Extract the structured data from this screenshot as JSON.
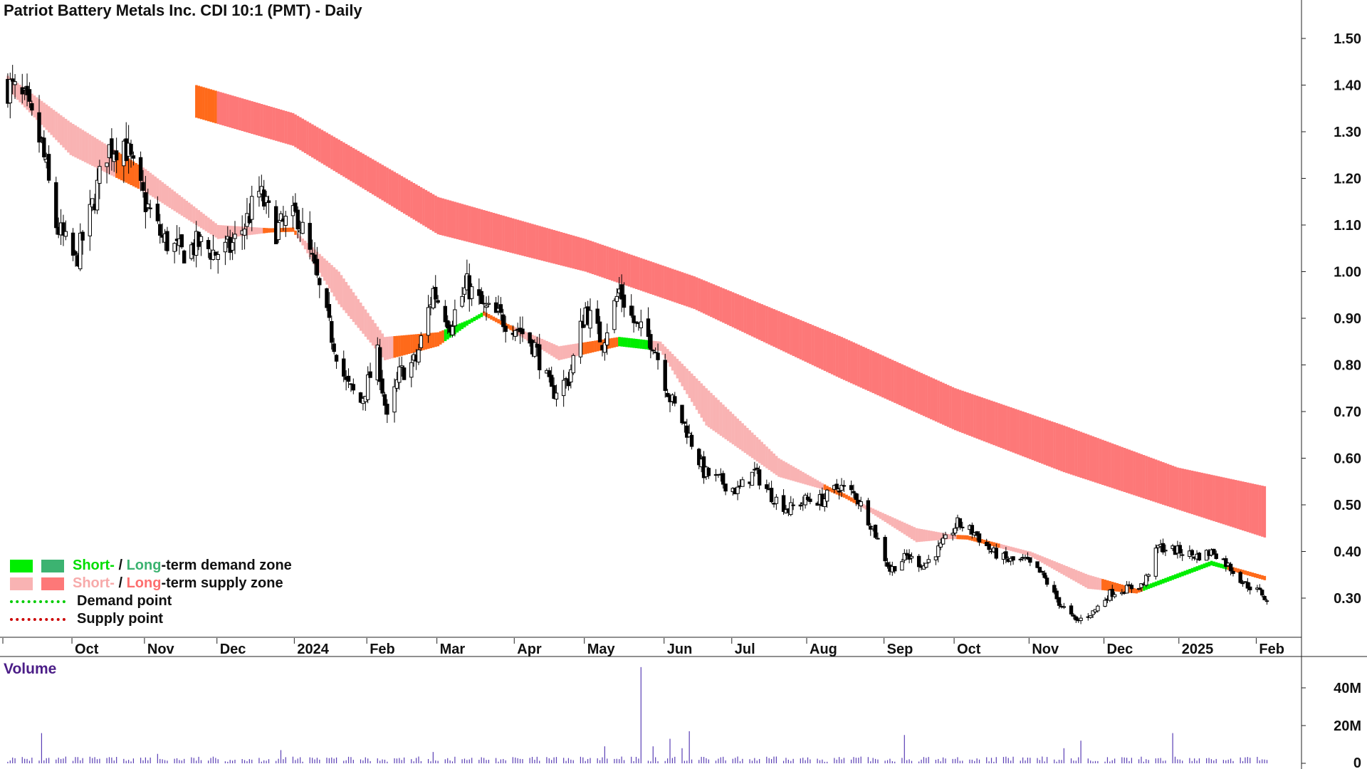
{
  "title": "Patriot Battery Metals Inc. CDI 10:1 (PMT) - Daily",
  "colors": {
    "candle": "#000000",
    "short_demand": "#00ee00",
    "long_demand": "#3cb371",
    "short_supply": "#f9b3b3",
    "long_supply": "#fd7878",
    "transition": "#ff6a1a",
    "demand_point": "#00cc00",
    "supply_point": "#cc0000",
    "volume": "#5a3fb5"
  },
  "legend": {
    "row1": {
      "short": "Short-",
      "slash": " / ",
      "long": "Long",
      "rest": "-term demand zone"
    },
    "row2": {
      "short": "Short-",
      "slash": " / ",
      "long": "Long",
      "rest": "-term supply zone"
    },
    "row3": "Demand point",
    "row4": "Supply point"
  },
  "chart_data": [
    {
      "type": "candlestick",
      "title": "Patriot Battery Metals Inc. CDI 10:1 (PMT) - Daily",
      "y_axis_position": "right",
      "ylim": [
        0.22,
        1.52
      ],
      "y_ticks": [
        "1.50",
        "1.40",
        "1.30",
        "1.20",
        "1.10",
        "1.00",
        "0.90",
        "0.80",
        "0.70",
        "0.60",
        "0.50",
        "0.40",
        "0.30"
      ],
      "x_ticks": [
        "Oct",
        "Nov",
        "Dec",
        "2024",
        "Feb",
        "Mar",
        "Apr",
        "May",
        "Jun",
        "Jul",
        "Aug",
        "Sep",
        "Oct",
        "Nov",
        "Dec",
        "2025",
        "Feb"
      ],
      "x_range": [
        "2023-09-04",
        "2025-02-07"
      ],
      "price_path": [
        [
          "2023-09-05",
          1.4
        ],
        [
          "2023-09-12",
          1.36
        ],
        [
          "2023-09-19",
          1.27
        ],
        [
          "2023-09-25",
          1.1
        ],
        [
          "2023-10-03",
          1.02
        ],
        [
          "2023-10-09",
          1.12
        ],
        [
          "2023-10-16",
          1.26
        ],
        [
          "2023-10-23",
          1.28
        ],
        [
          "2023-10-30",
          1.17
        ],
        [
          "2023-11-08",
          1.07
        ],
        [
          "2023-11-16",
          1.04
        ],
        [
          "2023-11-23",
          1.06
        ],
        [
          "2023-11-30",
          1.04
        ],
        [
          "2023-12-06",
          1.05
        ],
        [
          "2023-12-12",
          1.1
        ],
        [
          "2023-12-18",
          1.17
        ],
        [
          "2023-12-25",
          1.09
        ],
        [
          "2024-01-03",
          1.12
        ],
        [
          "2024-01-09",
          1.02
        ],
        [
          "2024-01-16",
          0.88
        ],
        [
          "2024-01-23",
          0.76
        ],
        [
          "2024-01-29",
          0.72
        ],
        [
          "2024-02-05",
          0.82
        ],
        [
          "2024-02-09",
          0.68
        ],
        [
          "2024-02-14",
          0.78
        ],
        [
          "2024-02-21",
          0.81
        ],
        [
          "2024-02-28",
          0.96
        ],
        [
          "2024-03-06",
          0.89
        ],
        [
          "2024-03-13",
          0.97
        ],
        [
          "2024-03-20",
          0.92
        ],
        [
          "2024-03-27",
          0.9
        ],
        [
          "2024-04-03",
          0.88
        ],
        [
          "2024-04-10",
          0.84
        ],
        [
          "2024-04-17",
          0.74
        ],
        [
          "2024-04-24",
          0.77
        ],
        [
          "2024-05-01",
          0.92
        ],
        [
          "2024-05-08",
          0.85
        ],
        [
          "2024-05-15",
          0.96
        ],
        [
          "2024-05-22",
          0.88
        ],
        [
          "2024-05-29",
          0.85
        ],
        [
          "2024-06-05",
          0.73
        ],
        [
          "2024-06-12",
          0.66
        ],
        [
          "2024-06-19",
          0.57
        ],
        [
          "2024-06-26",
          0.55
        ],
        [
          "2024-07-03",
          0.53
        ],
        [
          "2024-07-10",
          0.57
        ],
        [
          "2024-07-17",
          0.52
        ],
        [
          "2024-07-24",
          0.49
        ],
        [
          "2024-07-31",
          0.51
        ],
        [
          "2024-08-07",
          0.51
        ],
        [
          "2024-08-14",
          0.54
        ],
        [
          "2024-08-21",
          0.52
        ],
        [
          "2024-08-28",
          0.45
        ],
        [
          "2024-09-04",
          0.36
        ],
        [
          "2024-09-11",
          0.39
        ],
        [
          "2024-09-18",
          0.37
        ],
        [
          "2024-09-25",
          0.41
        ],
        [
          "2024-10-02",
          0.46
        ],
        [
          "2024-10-09",
          0.44
        ],
        [
          "2024-10-16",
          0.4
        ],
        [
          "2024-10-23",
          0.38
        ],
        [
          "2024-10-30",
          0.38
        ],
        [
          "2024-11-06",
          0.35
        ],
        [
          "2024-11-13",
          0.29
        ],
        [
          "2024-11-20",
          0.25
        ],
        [
          "2024-11-27",
          0.27
        ],
        [
          "2024-12-04",
          0.31
        ],
        [
          "2024-12-11",
          0.32
        ],
        [
          "2024-12-18",
          0.33
        ],
        [
          "2024-12-24",
          0.41
        ],
        [
          "2025-01-02",
          0.4
        ],
        [
          "2025-01-09",
          0.39
        ],
        [
          "2025-01-16",
          0.4
        ],
        [
          "2025-01-22",
          0.37
        ],
        [
          "2025-01-29",
          0.33
        ],
        [
          "2025-02-05",
          0.31
        ],
        [
          "2025-02-07",
          0.29
        ]
      ],
      "short_term_zone": [
        [
          "2023-09-05",
          1.42,
          1.39
        ],
        [
          "2023-10-01",
          1.32,
          1.25
        ],
        [
          "2023-11-01",
          1.22,
          1.17
        ],
        [
          "2023-12-01",
          1.1,
          1.07
        ],
        [
          "2024-01-01",
          1.09,
          1.09
        ],
        [
          "2024-01-20",
          1.0,
          0.93
        ],
        [
          "2024-02-08",
          0.86,
          0.81
        ],
        [
          "2024-03-01",
          0.87,
          0.84
        ],
        [
          "2024-03-20",
          0.91,
          0.91
        ],
        [
          "2024-04-20",
          0.84,
          0.81
        ],
        [
          "2024-05-15",
          0.86,
          0.84
        ],
        [
          "2024-06-01",
          0.85,
          0.83
        ],
        [
          "2024-06-20",
          0.75,
          0.67
        ],
        [
          "2024-07-20",
          0.6,
          0.56
        ],
        [
          "2024-08-16",
          0.52,
          0.52
        ],
        [
          "2024-09-15",
          0.45,
          0.42
        ],
        [
          "2024-10-06",
          0.43,
          0.43
        ],
        [
          "2024-11-01",
          0.4,
          0.39
        ],
        [
          "2024-11-25",
          0.35,
          0.32
        ],
        [
          "2024-12-15",
          0.32,
          0.31
        ],
        [
          "2025-01-15",
          0.38,
          0.37
        ],
        [
          "2025-02-06",
          0.346,
          0.34
        ]
      ],
      "long_term_zone": [
        [
          "2023-11-22",
          1.4,
          1.33
        ],
        [
          "2024-01-01",
          1.34,
          1.27
        ],
        [
          "2024-03-01",
          1.16,
          1.08
        ],
        [
          "2024-05-01",
          1.07,
          1.0
        ],
        [
          "2024-06-15",
          0.99,
          0.92
        ],
        [
          "2024-08-15",
          0.86,
          0.77
        ],
        [
          "2024-10-01",
          0.75,
          0.66
        ],
        [
          "2024-11-15",
          0.67,
          0.57
        ],
        [
          "2025-01-01",
          0.58,
          0.49
        ],
        [
          "2025-02-06",
          0.54,
          0.43
        ]
      ],
      "zone_states": [
        {
          "zone": "short",
          "from": "2023-09-04",
          "to": "2023-10-20",
          "state": "supply"
        },
        {
          "zone": "short",
          "from": "2023-10-20",
          "to": "2023-10-30",
          "state": "transition"
        },
        {
          "zone": "short",
          "from": "2023-10-30",
          "to": "2023-12-20",
          "state": "supply"
        },
        {
          "zone": "short",
          "from": "2023-12-20",
          "to": "2024-01-03",
          "state": "transition"
        },
        {
          "zone": "short",
          "from": "2024-01-03",
          "to": "2024-02-12",
          "state": "supply"
        },
        {
          "zone": "short",
          "from": "2024-02-12",
          "to": "2024-03-04",
          "state": "transition"
        },
        {
          "zone": "short",
          "from": "2024-03-04",
          "to": "2024-03-20",
          "state": "demand"
        },
        {
          "zone": "short",
          "from": "2024-03-20",
          "to": "2024-04-02",
          "state": "transition"
        },
        {
          "zone": "short",
          "from": "2024-04-02",
          "to": "2024-04-30",
          "state": "supply"
        },
        {
          "zone": "short",
          "from": "2024-04-30",
          "to": "2024-05-15",
          "state": "transition"
        },
        {
          "zone": "short",
          "from": "2024-05-15",
          "to": "2024-05-28",
          "state": "demand"
        },
        {
          "zone": "short",
          "from": "2024-05-28",
          "to": "2024-08-08",
          "state": "supply"
        },
        {
          "zone": "short",
          "from": "2024-08-08",
          "to": "2024-08-22",
          "state": "transition"
        },
        {
          "zone": "short",
          "from": "2024-08-22",
          "to": "2024-10-02",
          "state": "supply"
        },
        {
          "zone": "short",
          "from": "2024-10-02",
          "to": "2024-10-20",
          "state": "transition"
        },
        {
          "zone": "short",
          "from": "2024-10-20",
          "to": "2024-12-01",
          "state": "supply"
        },
        {
          "zone": "short",
          "from": "2024-12-01",
          "to": "2024-12-18",
          "state": "transition"
        },
        {
          "zone": "short",
          "from": "2024-12-18",
          "to": "2025-01-22",
          "state": "demand"
        },
        {
          "zone": "short",
          "from": "2025-01-22",
          "to": "2025-02-07",
          "state": "transition"
        },
        {
          "zone": "long",
          "from": "2023-11-22",
          "to": "2023-12-01",
          "state": "transition"
        },
        {
          "zone": "long",
          "from": "2023-12-01",
          "to": "2025-02-07",
          "state": "supply"
        }
      ]
    },
    {
      "type": "bar",
      "title": "Volume",
      "y_axis_position": "right",
      "ylim": [
        0,
        52
      ],
      "y_ticks": [
        "40M",
        "20M",
        "0"
      ],
      "units": "M",
      "spikes": [
        [
          "2023-09-19",
          16
        ],
        [
          "2023-11-06",
          5
        ],
        [
          "2023-12-27",
          7
        ],
        [
          "2024-01-28",
          5
        ],
        [
          "2024-02-28",
          6
        ],
        [
          "2024-03-16",
          11
        ],
        [
          "2024-05-09",
          9
        ],
        [
          "2024-05-24",
          51
        ],
        [
          "2024-05-29",
          9
        ],
        [
          "2024-06-05",
          13
        ],
        [
          "2024-06-10",
          8
        ],
        [
          "2024-06-13",
          17
        ],
        [
          "2024-09-10",
          15
        ],
        [
          "2024-11-15",
          8
        ],
        [
          "2024-11-22",
          12
        ],
        [
          "2024-12-01",
          11
        ],
        [
          "2024-12-30",
          16
        ]
      ]
    }
  ]
}
